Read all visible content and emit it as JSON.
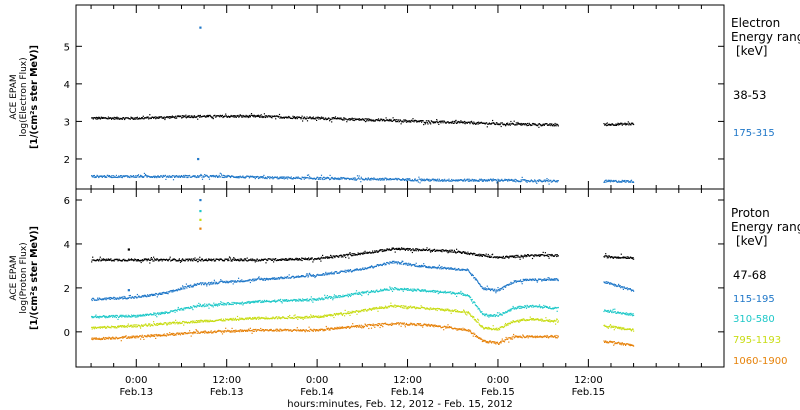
{
  "colors": {
    "black": "#000000",
    "blue": "#1f77c8",
    "cyan": "#1ec8c8",
    "yellow": "#c8dc14",
    "orange": "#e6820a"
  },
  "xaxis": {
    "label": "hours:minutes, Feb. 12, 2012 - Feb. 15, 2012",
    "range_hours": [
      -8,
      78
    ],
    "ticks": [
      {
        "hours": 0,
        "time": "0:00",
        "date": "Feb.13"
      },
      {
        "hours": 12,
        "time": "12:00",
        "date": "Feb.13"
      },
      {
        "hours": 24,
        "time": "0:00",
        "date": "Feb.14"
      },
      {
        "hours": 36,
        "time": "12:00",
        "date": "Feb.14"
      },
      {
        "hours": 48,
        "time": "0:00",
        "date": "Feb.15"
      },
      {
        "hours": 60,
        "time": "12:00",
        "date": "Feb.15"
      }
    ]
  },
  "chart_data": [
    {
      "type": "scatter",
      "panel": "electron",
      "ylabel_lines": [
        "ACE EPAM",
        "log(Electron Flux)",
        "[1/(cm²s ster MeV)]"
      ],
      "ylim": [
        1.2,
        6.1
      ],
      "yticks": [
        2,
        3,
        4,
        5
      ],
      "legend_title": [
        "Electron",
        "Energy range",
        "[keV]"
      ],
      "series": [
        {
          "name": "38-53",
          "color": "black",
          "x": [
            -6,
            0,
            8,
            12,
            16,
            24,
            32,
            40,
            48,
            56,
            59,
            62,
            66
          ],
          "y": [
            3.1,
            3.1,
            3.15,
            3.15,
            3.15,
            3.1,
            3.05,
            3.0,
            2.95,
            2.92,
            null,
            2.93,
            2.95
          ],
          "spikes": []
        },
        {
          "name": "175-315",
          "color": "blue",
          "x": [
            -6,
            0,
            8,
            12,
            16,
            24,
            32,
            40,
            48,
            56,
            59,
            62,
            66
          ],
          "y": [
            1.55,
            1.55,
            1.55,
            1.55,
            1.52,
            1.5,
            1.48,
            1.45,
            1.45,
            1.42,
            null,
            1.42,
            1.42
          ],
          "spikes": [
            [
              8.5,
              5.5
            ],
            [
              8.2,
              2.0
            ]
          ]
        }
      ]
    },
    {
      "type": "scatter",
      "panel": "proton",
      "ylabel_lines": [
        "ACE EPAM",
        "log(Proton Flux)",
        "[1/(cm²s ster MeV)]"
      ],
      "ylim": [
        -1.6,
        6.5
      ],
      "yticks": [
        0,
        2,
        4,
        6
      ],
      "legend_title": [
        "Proton",
        "Energy range",
        "[keV]"
      ],
      "series": [
        {
          "name": "47-68",
          "color": "black",
          "x": [
            -6,
            0,
            8,
            16,
            24,
            30,
            34,
            38,
            42,
            44,
            46,
            48,
            50,
            52,
            56,
            59,
            62,
            66
          ],
          "y": [
            3.3,
            3.3,
            3.3,
            3.3,
            3.35,
            3.6,
            3.8,
            3.75,
            3.7,
            3.6,
            3.5,
            3.4,
            3.45,
            3.5,
            3.5,
            null,
            3.45,
            3.4
          ],
          "spikes": [
            [
              -1,
              3.75
            ]
          ]
        },
        {
          "name": "115-195",
          "color": "blue",
          "x": [
            -6,
            0,
            4,
            8,
            16,
            24,
            30,
            34,
            38,
            42,
            44,
            46,
            48,
            50,
            52,
            56,
            59,
            62,
            66
          ],
          "y": [
            1.5,
            1.6,
            1.8,
            2.2,
            2.4,
            2.6,
            2.9,
            3.2,
            3.0,
            2.9,
            2.8,
            2.0,
            1.9,
            2.3,
            2.4,
            2.4,
            null,
            2.3,
            1.9
          ],
          "spikes": [
            [
              8.5,
              6.0
            ],
            [
              -1,
              1.9
            ]
          ]
        },
        {
          "name": "310-580",
          "color": "cyan",
          "x": [
            -6,
            0,
            4,
            8,
            16,
            24,
            30,
            34,
            38,
            42,
            44,
            46,
            48,
            50,
            52,
            56,
            59,
            62,
            66
          ],
          "y": [
            0.7,
            0.75,
            0.9,
            1.2,
            1.4,
            1.5,
            1.8,
            2.0,
            1.9,
            1.8,
            1.7,
            0.8,
            0.75,
            1.1,
            1.2,
            1.1,
            null,
            1.0,
            0.8
          ],
          "spikes": [
            [
              8.5,
              5.5
            ]
          ]
        },
        {
          "name": "795-1193",
          "color": "yellow",
          "x": [
            -6,
            0,
            4,
            8,
            16,
            24,
            30,
            34,
            38,
            42,
            44,
            46,
            48,
            50,
            52,
            56,
            59,
            62,
            66
          ],
          "y": [
            0.2,
            0.3,
            0.4,
            0.5,
            0.65,
            0.7,
            1.0,
            1.2,
            1.1,
            1.0,
            0.9,
            0.2,
            0.15,
            0.5,
            0.6,
            0.5,
            null,
            0.3,
            0.1
          ],
          "spikes": [
            [
              8.5,
              5.1
            ]
          ]
        },
        {
          "name": "1060-1900",
          "color": "orange",
          "x": [
            -6,
            0,
            4,
            8,
            16,
            24,
            30,
            34,
            38,
            42,
            44,
            46,
            48,
            50,
            52,
            56,
            59,
            62,
            66
          ],
          "y": [
            -0.3,
            -0.2,
            -0.1,
            0.0,
            0.1,
            0.1,
            0.3,
            0.4,
            0.35,
            0.2,
            0.1,
            -0.4,
            -0.5,
            -0.2,
            -0.2,
            -0.2,
            null,
            -0.4,
            -0.6
          ],
          "spikes": [
            [
              8.5,
              4.7
            ]
          ]
        }
      ]
    }
  ]
}
